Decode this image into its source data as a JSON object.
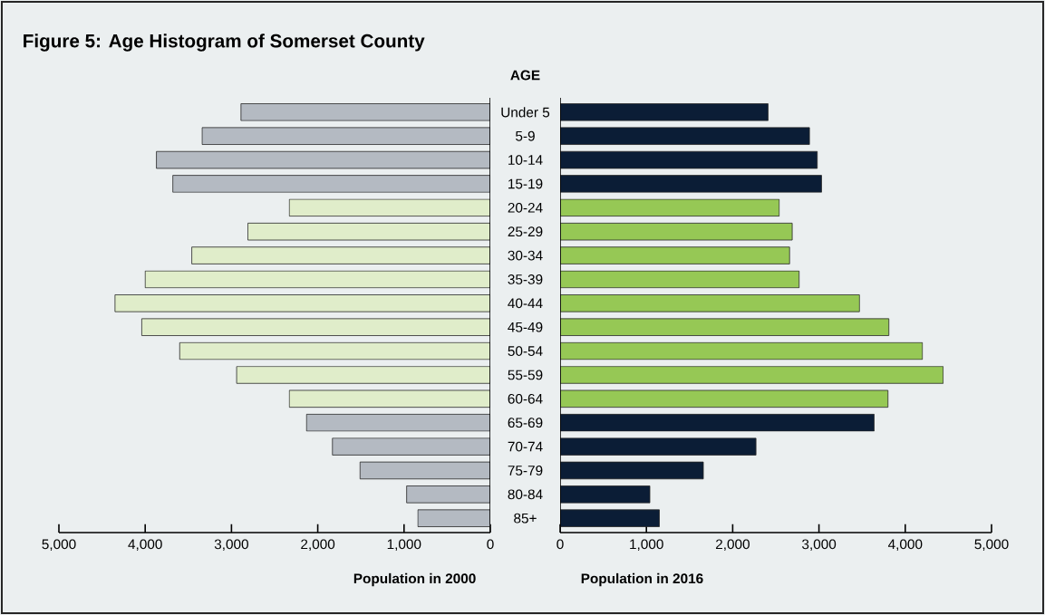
{
  "chart_data": [
    {
      "type": "bar",
      "orientation": "horizontal",
      "title": "Figure 5: Age Histogram of Somerset County",
      "xlabel": "Population in 2000",
      "tick_labels": "x",
      "values": [
        2890,
        3340,
        3870,
        3680,
        2330,
        2810,
        3460,
        4000,
        4350,
        4040,
        3600,
        2940,
        2330,
        2130,
        1830,
        1510,
        970,
        840
      ],
      "colors": [
        "#b4bac2",
        "#b4bac2",
        "#b4bac2",
        "#b4bac2",
        "#e0edca",
        "#e0edca",
        "#e0edca",
        "#e0edca",
        "#e0edca",
        "#e0edca",
        "#e0edca",
        "#e0edca",
        "#e0edca",
        "#b4bac2",
        "#b4bac2",
        "#b4bac2",
        "#b4bac2",
        "#b4bac2"
      ],
      "xlim": [
        5000,
        0
      ],
      "xticks": [
        {
          "value": 5000,
          "label": "5,000"
        },
        {
          "value": 4000,
          "label": "4,000"
        },
        {
          "value": 3000,
          "label": "3,000"
        },
        {
          "value": 2000,
          "label": "2,000"
        },
        {
          "value": 1000,
          "label": "1,000"
        },
        0
      ]
    },
    {
      "type": "bar",
      "orientation": "horizontal",
      "xlabel": "Population in 2016",
      "ylabel": "AGE",
      "categories": [
        "Under 5",
        "5-9",
        "10-14",
        "15-19",
        "20-24",
        "25-29",
        "30-34",
        "35-39",
        "40-44",
        "45-49",
        "50-54",
        "55-59",
        "60-64",
        "65-69",
        "70-74",
        "75-79",
        "80-84",
        "85+"
      ],
      "values": [
        2410,
        2890,
        2980,
        3030,
        2540,
        2690,
        2660,
        2770,
        3470,
        3810,
        4200,
        4440,
        3800,
        3640,
        2270,
        1660,
        1040,
        1150
      ],
      "colors": [
        "#0b1d36",
        "#0b1d36",
        "#0b1d36",
        "#0b1d36",
        "#96c855",
        "#96c855",
        "#96c855",
        "#96c855",
        "#96c855",
        "#96c855",
        "#96c855",
        "#96c855",
        "#96c855",
        "#0b1d36",
        "#0b1d36",
        "#0b1d36",
        "#0b1d36",
        "#0b1d36"
      ],
      "xlim": [
        0,
        5000
      ],
      "xticks": [
        0,
        {
          "value": 1000,
          "label": "1,000"
        },
        {
          "value": 2000,
          "label": "2,000"
        },
        {
          "value": 3000,
          "label": "3,000"
        },
        {
          "value": 4000,
          "label": "4,000"
        },
        {
          "value": 5000,
          "label": "5,000"
        }
      ]
    }
  ]
}
